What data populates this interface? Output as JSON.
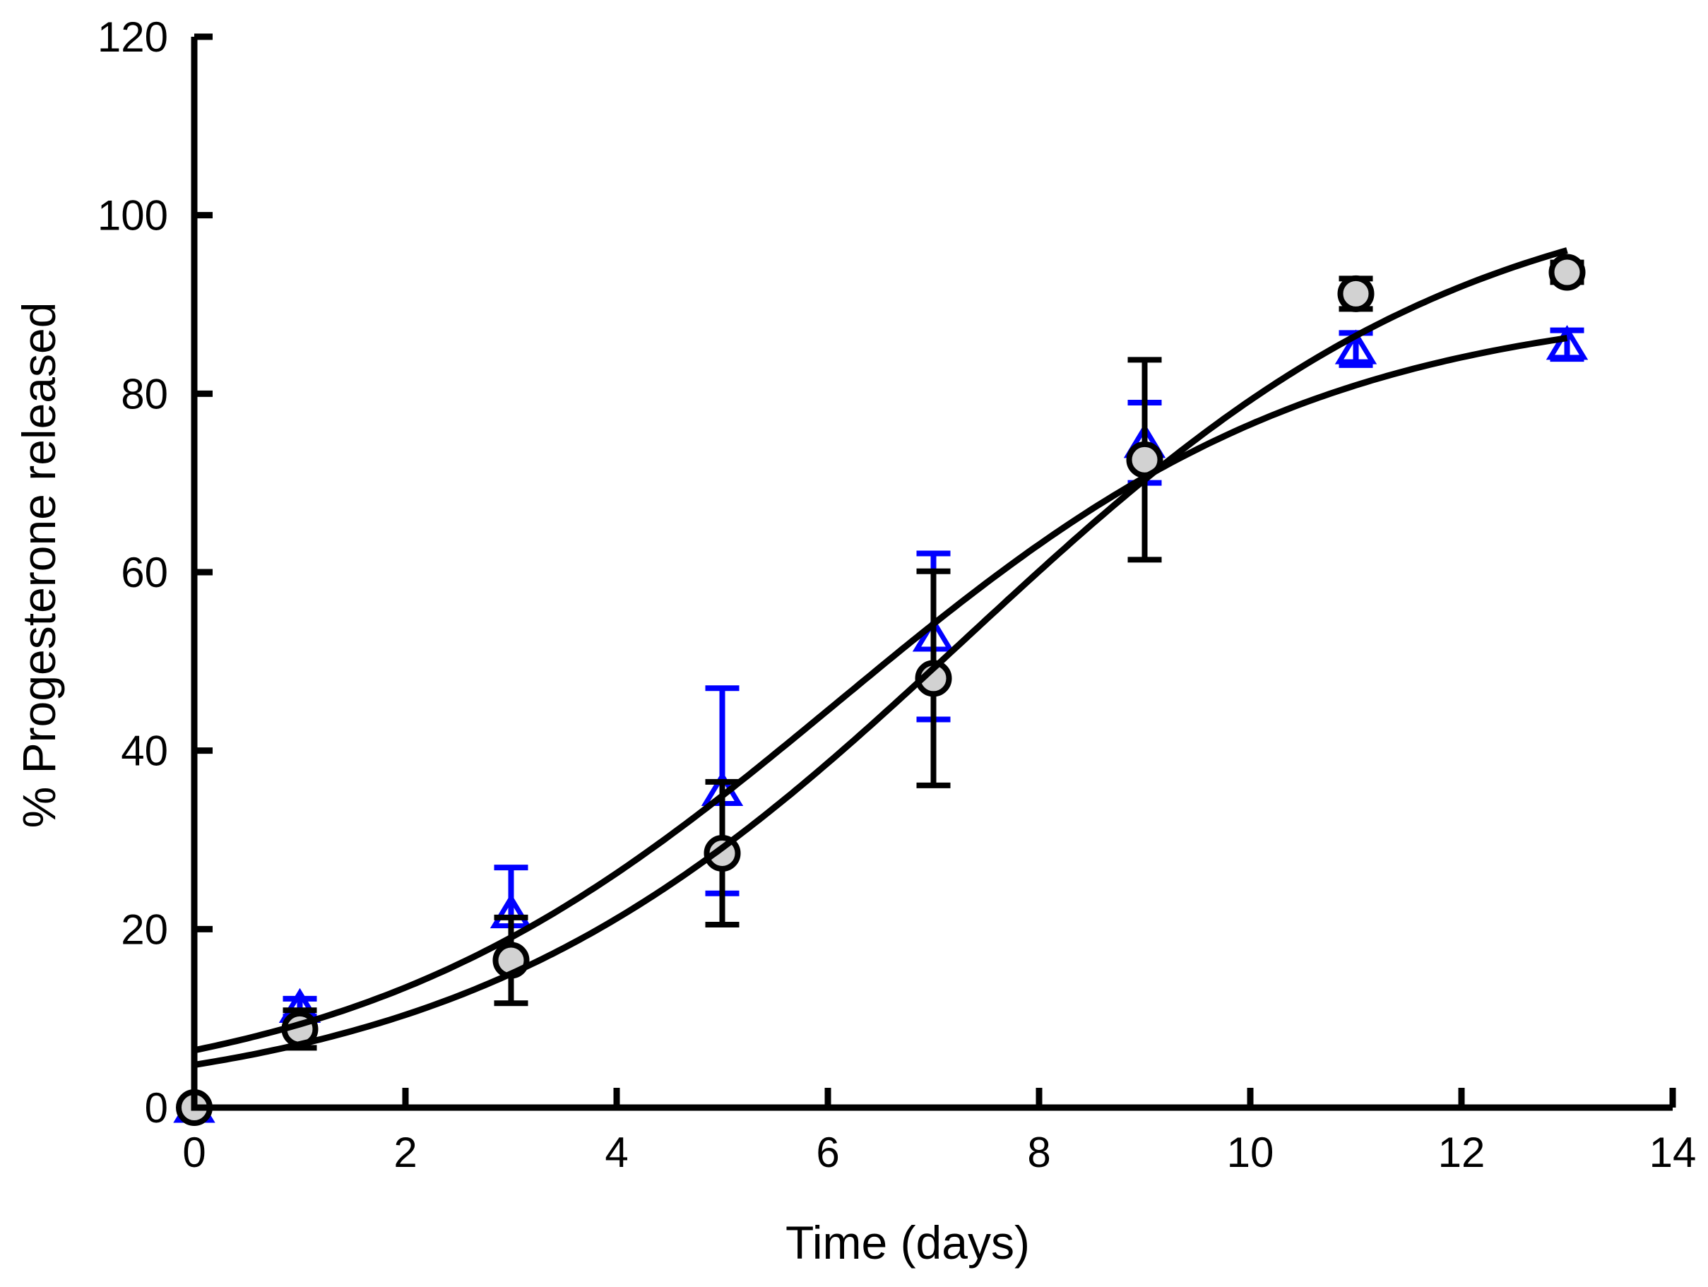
{
  "figure": {
    "background": "#ffffff",
    "axis_color": "#000000"
  },
  "chart_data": {
    "type": "scatter",
    "title": "",
    "xlabel": "Time (days)",
    "ylabel": "% Progesterone released",
    "xlim": [
      0,
      14
    ],
    "ylim": [
      0,
      120
    ],
    "xticks": [
      0,
      2,
      4,
      6,
      8,
      10,
      12,
      14
    ],
    "yticks": [
      0,
      20,
      40,
      60,
      80,
      100,
      120
    ],
    "grid": false,
    "legend": "none",
    "series": [
      {
        "id": "open-triangles",
        "marker": "triangle-open",
        "stroke": "#0000ff",
        "fill": "none",
        "error_color": "#0000ff",
        "x": [
          0,
          1,
          3,
          5,
          7,
          9,
          11,
          13
        ],
        "y": [
          0,
          11.2,
          21.8,
          35.5,
          52.8,
          74.5,
          85.0,
          85.5
        ],
        "yerr": [
          0,
          1.0,
          5.1,
          11.5,
          9.3,
          4.5,
          1.8,
          1.6
        ]
      },
      {
        "id": "gray-circles",
        "marker": "circle-filled",
        "stroke": "#000000",
        "fill": "#d2d2d2",
        "error_color": "#000000",
        "x": [
          0,
          1,
          3,
          5,
          7,
          9,
          11,
          13
        ],
        "y": [
          0,
          8.8,
          16.5,
          28.5,
          48.1,
          72.6,
          91.2,
          93.6
        ],
        "yerr": [
          0,
          2.1,
          4.8,
          8.0,
          12.0,
          11.2,
          1.7,
          1.1
        ]
      }
    ],
    "fit_curves": [
      {
        "for": "open-triangles",
        "model": "logistic",
        "params": {
          "a": 0.5,
          "b": 90,
          "x0": 6.1,
          "k": 2.3
        },
        "x_range": [
          0,
          13
        ],
        "color": "#000000"
      },
      {
        "for": "gray-circles",
        "model": "logistic",
        "params": {
          "a": 0,
          "b": 105,
          "x0": 7.3,
          "k": 2.4
        },
        "x_range": [
          0,
          13
        ],
        "color": "#000000"
      }
    ]
  }
}
